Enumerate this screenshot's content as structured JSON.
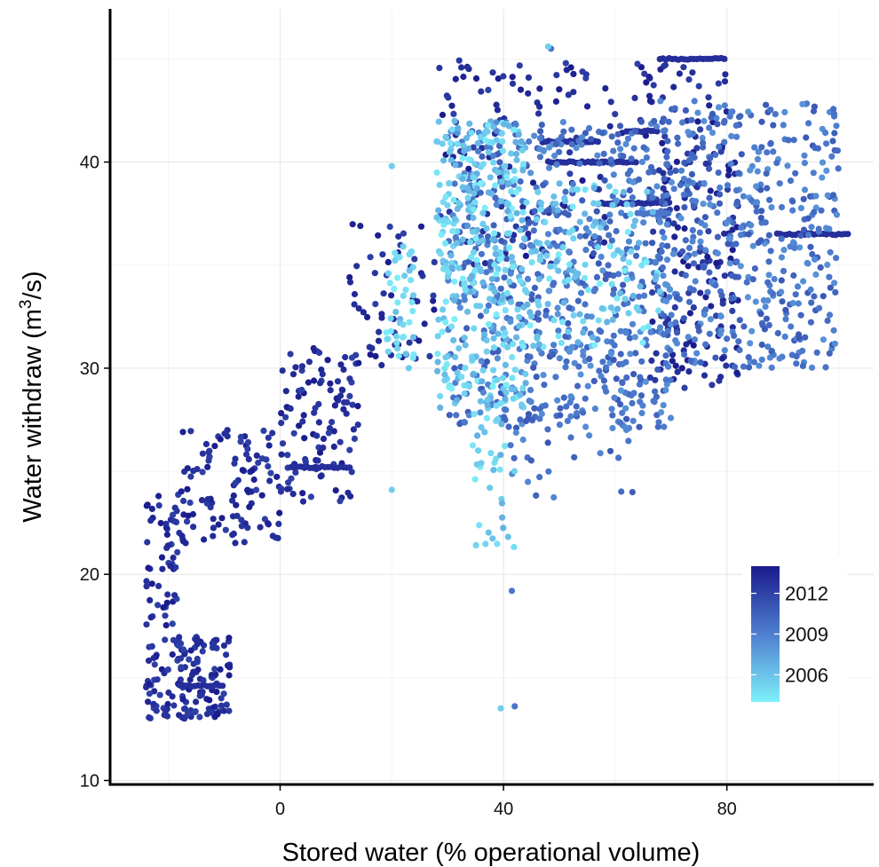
{
  "chart_data": {
    "type": "scatter",
    "title": "",
    "xlabel": "Stored water (% operational volume)",
    "ylabel_main": "Water withdraw (m",
    "ylabel_sup": "3",
    "ylabel_tail": "/s)",
    "xlim": [
      -30,
      105
    ],
    "ylim": [
      9.7,
      47.2
    ],
    "x_ticks": [
      0,
      40,
      80
    ],
    "y_ticks": [
      10,
      20,
      30,
      40
    ],
    "grid": true,
    "legend": {
      "title": "",
      "placement": "bottom-right inside",
      "ticks": [
        2012,
        2009,
        2006
      ],
      "range": [
        2004,
        2014
      ],
      "colors": {
        "low": "#7ef0fa",
        "mid": "#4f7fd0",
        "high": "#1a1a8c"
      }
    },
    "series": [
      {
        "year_range": [
          2012,
          2014
        ],
        "color_hint": "dark-navy",
        "clusters": [
          {
            "x": [
              -24,
              -9
            ],
            "y": [
              13,
              17
            ],
            "n": 150
          },
          {
            "x": [
              -24,
              -18
            ],
            "y": [
              17.5,
              24
            ],
            "n": 55
          },
          {
            "x": [
              -18,
              0
            ],
            "y": [
              21.5,
              27
            ],
            "n": 110
          },
          {
            "x": [
              0,
              14
            ],
            "y": [
              23.5,
              31
            ],
            "n": 110
          },
          {
            "x": [
              12,
              28
            ],
            "y": [
              30,
              37
            ],
            "n": 60
          },
          {
            "x": [
              28,
              60
            ],
            "y": [
              35,
              45
            ],
            "n": 120
          },
          {
            "x": [
              66,
              82
            ],
            "y": [
              29,
              40
            ],
            "n": 140
          },
          {
            "x": [
              60,
              80
            ],
            "y": [
              40,
              45
            ],
            "n": 50
          }
        ],
        "lines": [
          {
            "x": [
              2,
              13
            ],
            "y": 25.2
          },
          {
            "x": [
              -18,
              -10
            ],
            "y": 14.6
          },
          {
            "x": [
              47,
              57
            ],
            "y": 41.0
          },
          {
            "x": [
              48,
              58
            ],
            "y": 40.0
          },
          {
            "x": [
              56,
              64
            ],
            "y": 40.0
          },
          {
            "x": [
              57,
              70
            ],
            "y": 38.0
          },
          {
            "x": [
              62,
              68
            ],
            "y": 41.5
          },
          {
            "x": [
              68,
              80
            ],
            "y": 45.0
          },
          {
            "x": [
              89,
              102
            ],
            "y": 36.5
          }
        ]
      },
      {
        "year_range": [
          2008,
          2011
        ],
        "color_hint": "mid-blue",
        "clusters": [
          {
            "x": [
              30,
              70
            ],
            "y": [
              27,
              42
            ],
            "n": 650
          },
          {
            "x": [
              68,
              100
            ],
            "y": [
              30,
              43
            ],
            "n": 450
          },
          {
            "x": [
              40,
              64
            ],
            "y": [
              23.5,
              29
            ],
            "n": 40
          }
        ],
        "lines": [
          {
            "x": [
              64,
              70
            ],
            "y": 37.5
          }
        ],
        "points": [
          [
            41.5,
            19.2
          ],
          [
            48.5,
            45.5
          ],
          [
            42,
            13.6
          ]
        ]
      },
      {
        "year_range": [
          2004,
          2007
        ],
        "color_hint": "light-cyan",
        "clusters": [
          {
            "x": [
              19,
              24
            ],
            "y": [
              30,
              36
            ],
            "n": 45
          },
          {
            "x": [
              28,
              44
            ],
            "y": [
              28,
              42
            ],
            "n": 360
          },
          {
            "x": [
              34,
              42
            ],
            "y": [
              21,
              28
            ],
            "n": 35
          },
          {
            "x": [
              44,
              68
            ],
            "y": [
              31,
              39
            ],
            "n": 140
          }
        ],
        "points": [
          [
            20,
            24.1
          ],
          [
            20,
            39.8
          ],
          [
            39.5,
            13.5
          ],
          [
            48,
            45.6
          ]
        ]
      }
    ]
  }
}
